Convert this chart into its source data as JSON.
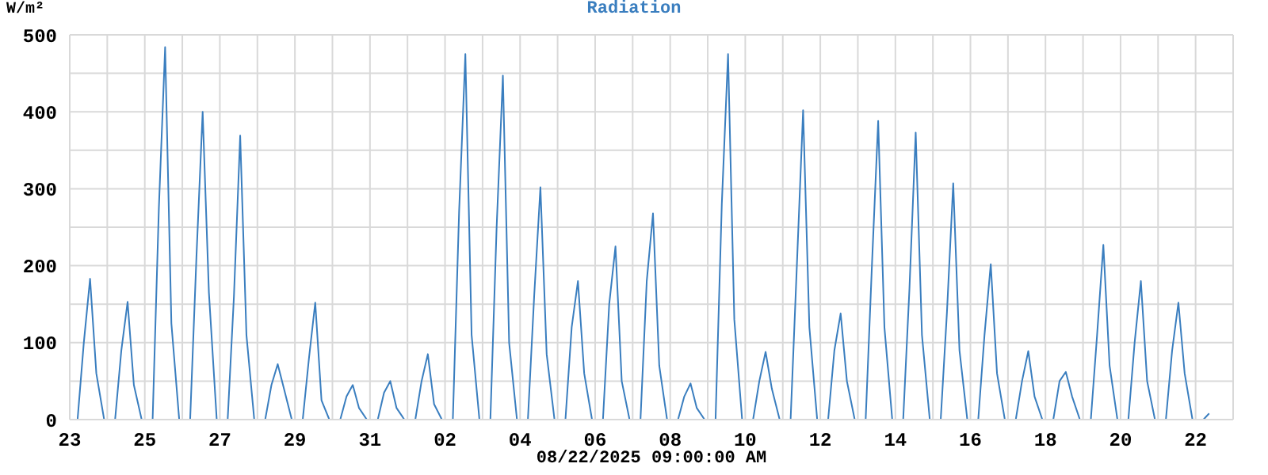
{
  "chart_data": {
    "type": "line",
    "title": "Radiation",
    "ylabel": "W/m²",
    "xlabel": "08/22/2025 09:00:00 AM",
    "grid": true,
    "marker": "none",
    "line_style": "solid",
    "xlim": [
      "2025-08-23",
      "2025-09-23"
    ],
    "xticks": [
      {
        "value": "2025-08-23",
        "label": "23"
      },
      {
        "value": "2025-08-24",
        "label": null
      },
      {
        "value": "2025-08-25",
        "label": "25"
      },
      {
        "value": "2025-08-26",
        "label": null
      },
      {
        "value": "2025-08-27",
        "label": "27"
      },
      {
        "value": "2025-08-28",
        "label": null
      },
      {
        "value": "2025-08-29",
        "label": "29"
      },
      {
        "value": "2025-08-30",
        "label": null
      },
      {
        "value": "2025-08-31",
        "label": "31"
      },
      {
        "value": "2025-09-01",
        "label": null
      },
      {
        "value": "2025-09-02",
        "label": "02"
      },
      {
        "value": "2025-09-03",
        "label": null
      },
      {
        "value": "2025-09-04",
        "label": "04"
      },
      {
        "value": "2025-09-05",
        "label": null
      },
      {
        "value": "2025-09-06",
        "label": "06"
      },
      {
        "value": "2025-09-07",
        "label": null
      },
      {
        "value": "2025-09-08",
        "label": "08"
      },
      {
        "value": "2025-09-09",
        "label": null
      },
      {
        "value": "2025-09-10",
        "label": "10"
      },
      {
        "value": "2025-09-11",
        "label": null
      },
      {
        "value": "2025-09-12",
        "label": "12"
      },
      {
        "value": "2025-09-13",
        "label": null
      },
      {
        "value": "2025-09-14",
        "label": "14"
      },
      {
        "value": "2025-09-15",
        "label": null
      },
      {
        "value": "2025-09-16",
        "label": "16"
      },
      {
        "value": "2025-09-17",
        "label": null
      },
      {
        "value": "2025-09-18",
        "label": "18"
      },
      {
        "value": "2025-09-19",
        "label": null
      },
      {
        "value": "2025-09-20",
        "label": "20"
      },
      {
        "value": "2025-09-21",
        "label": null
      },
      {
        "value": "2025-09-22",
        "label": "22"
      },
      {
        "value": "2025-09-23",
        "label": null
      }
    ],
    "ylim": [
      0,
      500
    ],
    "yticks": [
      0,
      {
        "value": 50,
        "label": null
      },
      100,
      {
        "value": 150,
        "label": null
      },
      200,
      {
        "value": 250,
        "label": null
      },
      300,
      {
        "value": 350,
        "label": null
      },
      400,
      {
        "value": 450,
        "label": null
      },
      500
    ],
    "series": [
      {
        "color": "#3a7ebf",
        "x": [
          "2025-08-23T05:00",
          "2025-08-23T09:00",
          "2025-08-23T13:00",
          "2025-08-23T17:00",
          "2025-08-23T22:00",
          "2025-08-24T05:00",
          "2025-08-24T09:00",
          "2025-08-24T13:00",
          "2025-08-24T17:00",
          "2025-08-24T22:00",
          "2025-08-25T05:00",
          "2025-08-25T09:00",
          "2025-08-25T13:00",
          "2025-08-25T17:00",
          "2025-08-25T22:00",
          "2025-08-26T05:00",
          "2025-08-26T09:00",
          "2025-08-26T13:00",
          "2025-08-26T17:00",
          "2025-08-26T22:00",
          "2025-08-27T05:00",
          "2025-08-27T09:00",
          "2025-08-27T13:00",
          "2025-08-27T17:00",
          "2025-08-27T22:00",
          "2025-08-28T05:00",
          "2025-08-28T09:00",
          "2025-08-28T13:00",
          "2025-08-28T17:00",
          "2025-08-28T22:00",
          "2025-08-29T05:00",
          "2025-08-29T09:00",
          "2025-08-29T13:00",
          "2025-08-29T17:00",
          "2025-08-29T22:00",
          "2025-08-30T05:00",
          "2025-08-30T09:00",
          "2025-08-30T13:00",
          "2025-08-30T17:00",
          "2025-08-30T22:00",
          "2025-08-31T05:00",
          "2025-08-31T09:00",
          "2025-08-31T13:00",
          "2025-08-31T17:00",
          "2025-08-31T22:00",
          "2025-09-01T05:00",
          "2025-09-01T09:00",
          "2025-09-01T13:00",
          "2025-09-01T17:00",
          "2025-09-01T22:00",
          "2025-09-02T05:00",
          "2025-09-02T09:00",
          "2025-09-02T13:00",
          "2025-09-02T17:00",
          "2025-09-02T22:00",
          "2025-09-03T05:00",
          "2025-09-03T09:00",
          "2025-09-03T13:00",
          "2025-09-03T17:00",
          "2025-09-03T22:00",
          "2025-09-04T05:00",
          "2025-09-04T09:00",
          "2025-09-04T13:00",
          "2025-09-04T17:00",
          "2025-09-04T22:00",
          "2025-09-05T05:00",
          "2025-09-05T09:00",
          "2025-09-05T13:00",
          "2025-09-05T17:00",
          "2025-09-05T22:00",
          "2025-09-06T05:00",
          "2025-09-06T09:00",
          "2025-09-06T13:00",
          "2025-09-06T17:00",
          "2025-09-06T22:00",
          "2025-09-07T05:00",
          "2025-09-07T09:00",
          "2025-09-07T13:00",
          "2025-09-07T17:00",
          "2025-09-07T22:00",
          "2025-09-08T05:00",
          "2025-09-08T09:00",
          "2025-09-08T13:00",
          "2025-09-08T17:00",
          "2025-09-08T22:00",
          "2025-09-09T05:00",
          "2025-09-09T09:00",
          "2025-09-09T13:00",
          "2025-09-09T17:00",
          "2025-09-09T22:00",
          "2025-09-10T05:00",
          "2025-09-10T09:00",
          "2025-09-10T13:00",
          "2025-09-10T17:00",
          "2025-09-10T22:00",
          "2025-09-11T05:00",
          "2025-09-11T09:00",
          "2025-09-11T13:00",
          "2025-09-11T17:00",
          "2025-09-11T22:00",
          "2025-09-12T05:00",
          "2025-09-12T09:00",
          "2025-09-12T13:00",
          "2025-09-12T17:00",
          "2025-09-12T22:00",
          "2025-09-13T05:00",
          "2025-09-13T09:00",
          "2025-09-13T13:00",
          "2025-09-13T17:00",
          "2025-09-13T22:00",
          "2025-09-14T05:00",
          "2025-09-14T09:00",
          "2025-09-14T13:00",
          "2025-09-14T17:00",
          "2025-09-14T22:00",
          "2025-09-15T05:00",
          "2025-09-15T09:00",
          "2025-09-15T13:00",
          "2025-09-15T17:00",
          "2025-09-15T22:00",
          "2025-09-16T05:00",
          "2025-09-16T09:00",
          "2025-09-16T13:00",
          "2025-09-16T17:00",
          "2025-09-16T22:00",
          "2025-09-17T05:00",
          "2025-09-17T09:00",
          "2025-09-17T13:00",
          "2025-09-17T17:00",
          "2025-09-17T22:00",
          "2025-09-18T05:00",
          "2025-09-18T09:00",
          "2025-09-18T13:00",
          "2025-09-18T17:00",
          "2025-09-18T22:00",
          "2025-09-19T05:00",
          "2025-09-19T09:00",
          "2025-09-19T13:00",
          "2025-09-19T17:00",
          "2025-09-19T22:00",
          "2025-09-20T05:00",
          "2025-09-20T09:00",
          "2025-09-20T13:00",
          "2025-09-20T17:00",
          "2025-09-20T22:00",
          "2025-09-21T05:00",
          "2025-09-21T09:00",
          "2025-09-21T13:00",
          "2025-09-21T17:00",
          "2025-09-21T22:00",
          "2025-09-22T05:00",
          "2025-09-22T08:40"
        ],
        "values": [
          0,
          100,
          183,
          60,
          0,
          0,
          90,
          153,
          45,
          0,
          0,
          275,
          484,
          125,
          0,
          0,
          210,
          400,
          165,
          0,
          0,
          160,
          369,
          110,
          0,
          0,
          45,
          72,
          40,
          0,
          0,
          80,
          152,
          25,
          0,
          0,
          30,
          45,
          15,
          0,
          0,
          35,
          50,
          15,
          0,
          0,
          50,
          85,
          20,
          0,
          0,
          270,
          475,
          110,
          0,
          0,
          250,
          447,
          100,
          0,
          0,
          160,
          302,
          85,
          0,
          0,
          120,
          180,
          60,
          0,
          0,
          150,
          225,
          50,
          0,
          0,
          180,
          268,
          70,
          0,
          0,
          30,
          47,
          15,
          0,
          0,
          280,
          475,
          130,
          0,
          0,
          50,
          88,
          40,
          0,
          0,
          200,
          402,
          120,
          0,
          0,
          90,
          138,
          50,
          0,
          0,
          200,
          388,
          120,
          0,
          0,
          170,
          373,
          110,
          0,
          0,
          140,
          307,
          90,
          0,
          0,
          110,
          202,
          60,
          0,
          0,
          50,
          89,
          30,
          0,
          0,
          50,
          62,
          30,
          0,
          0,
          110,
          227,
          70,
          0,
          0,
          100,
          180,
          50,
          0,
          0,
          90,
          152,
          60,
          0,
          0,
          8
        ]
      }
    ]
  }
}
